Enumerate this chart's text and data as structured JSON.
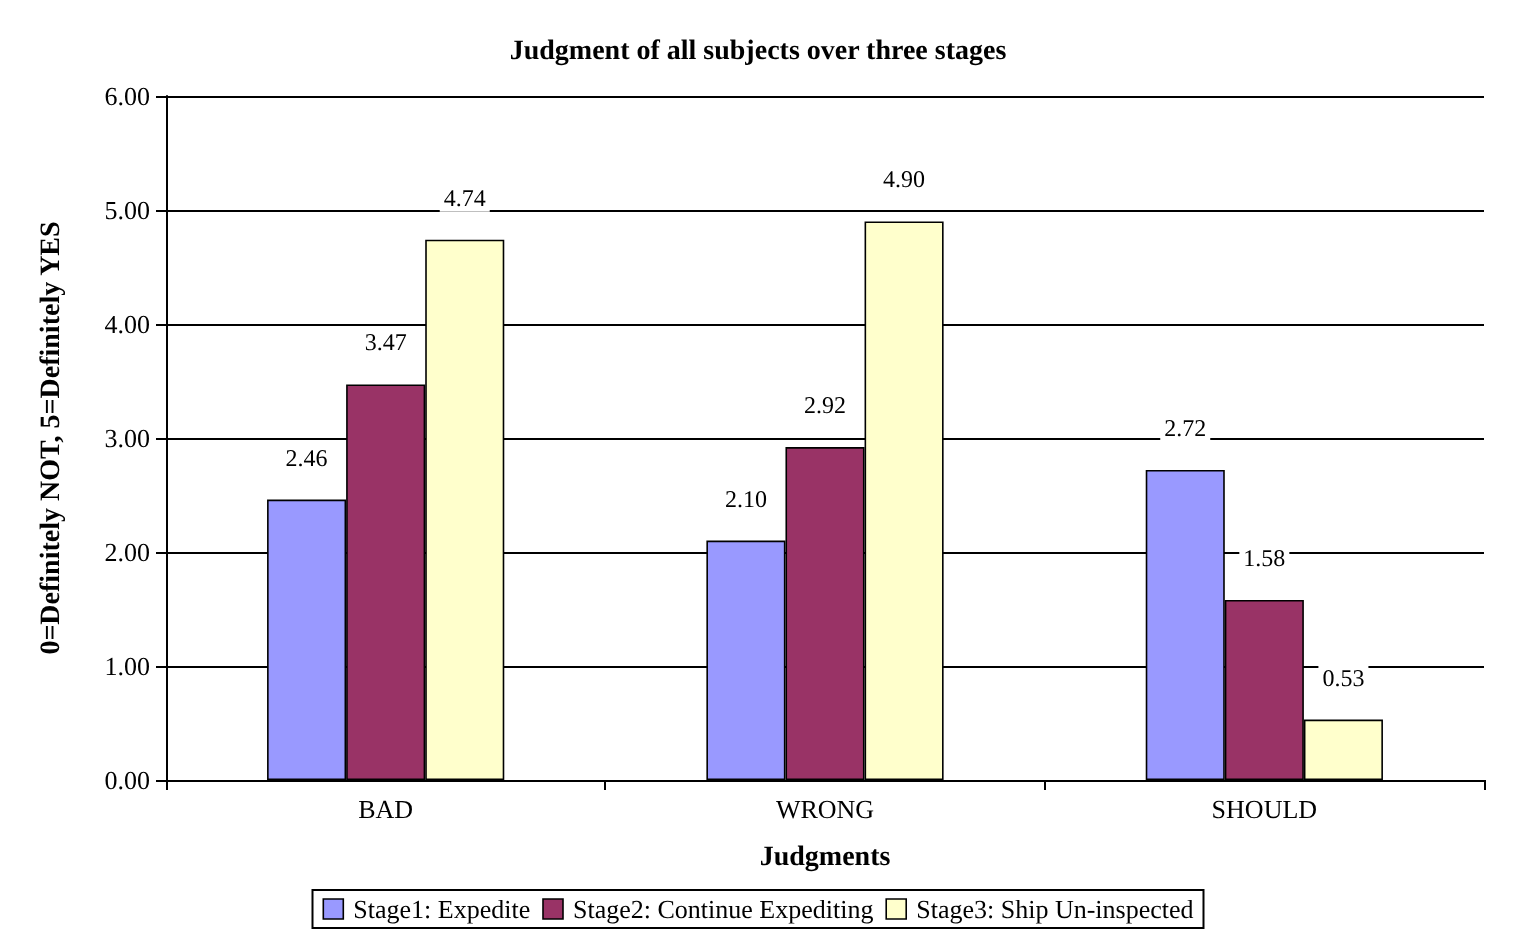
{
  "chart_data": {
    "type": "bar",
    "title": "Judgment of all subjects over three stages",
    "xlabel": "Judgments",
    "ylabel": "0=Definitely NOT, 5=Definitely YES",
    "categories": [
      "BAD",
      "WRONG",
      "SHOULD"
    ],
    "series": [
      {
        "name": "Stage1: Expedite",
        "color": "#9999ff",
        "values": [
          2.46,
          2.1,
          2.72
        ],
        "value_labels": [
          "2.46",
          "2.10",
          "2.72"
        ]
      },
      {
        "name": "Stage2: Continue Expediting",
        "color": "#993366",
        "values": [
          3.47,
          2.92,
          1.58
        ],
        "value_labels": [
          "3.47",
          "2.92",
          "1.58"
        ]
      },
      {
        "name": "Stage3: Ship Un-inspected",
        "color": "#ffffcc",
        "values": [
          4.74,
          4.9,
          0.53
        ],
        "value_labels": [
          "4.74",
          "4.90",
          "0.53"
        ]
      }
    ],
    "ylim": [
      0,
      6
    ],
    "yticks": [
      {
        "value": 0,
        "label": "0.00"
      },
      {
        "value": 1,
        "label": "1.00"
      },
      {
        "value": 2,
        "label": "2.00"
      },
      {
        "value": 3,
        "label": "3.00"
      },
      {
        "value": 4,
        "label": "4.00"
      },
      {
        "value": 5,
        "label": "5.00"
      },
      {
        "value": 6,
        "label": "6.00"
      }
    ],
    "grid": "y",
    "legend": "bottom"
  }
}
